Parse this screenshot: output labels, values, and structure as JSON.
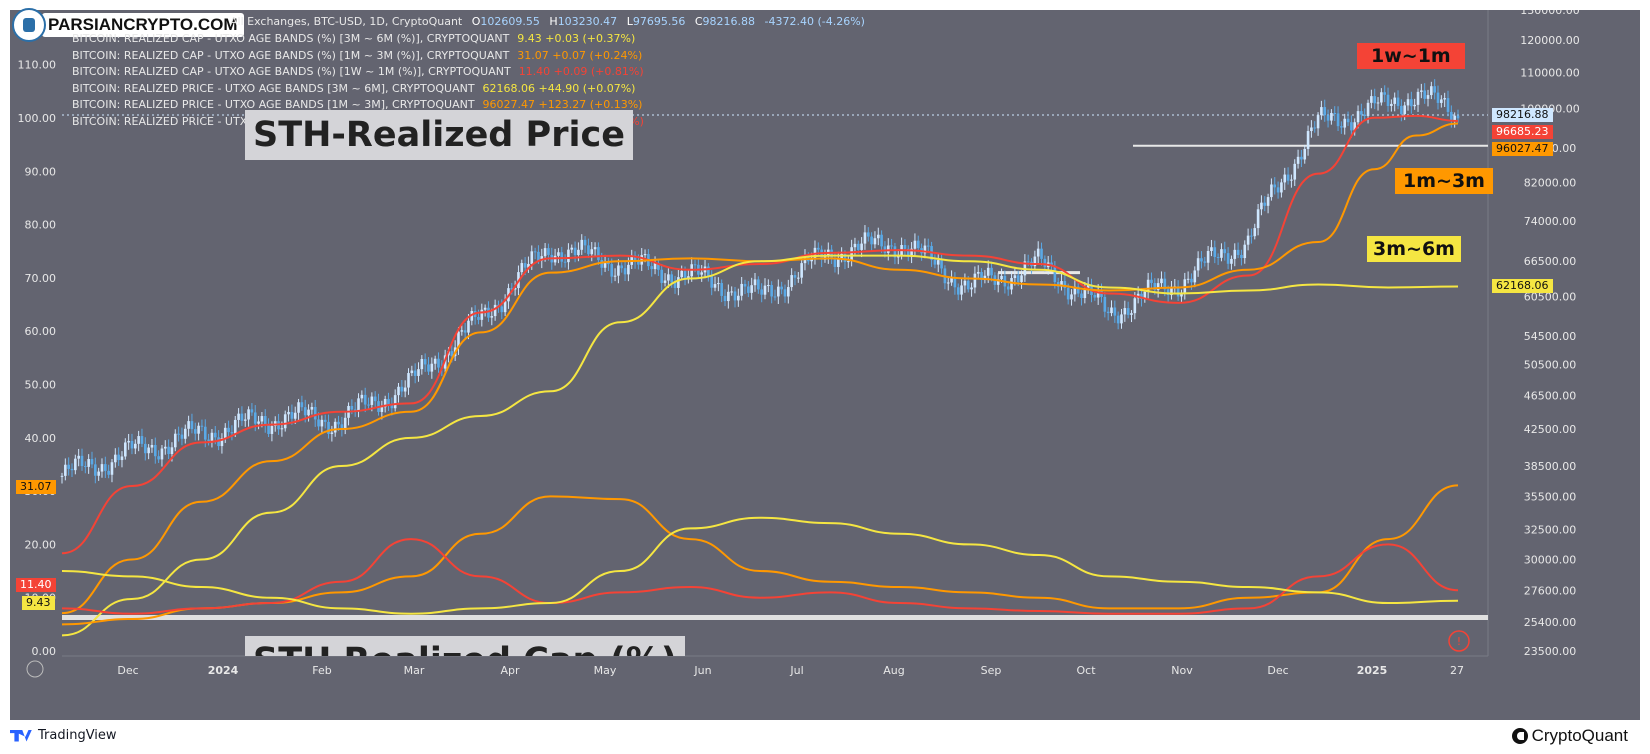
{
  "brand": {
    "text": "PARSIANCRYPTO.COM"
  },
  "header": {
    "main_line": "All Exchanges, BTC-USD, 1D, CryptoQuant",
    "ohlc": {
      "o_label": "O",
      "o": "102609.55",
      "h_label": "H",
      "h": "103230.47",
      "l_label": "L",
      "l": "97695.56",
      "c_label": "C",
      "c": "98216.88",
      "chg": "-4372.40 (-4.26%)"
    },
    "indicators": [
      {
        "text": "BITCOIN: REALIZED CAP - UTXO AGE BANDS (%) [3M ~ 6M (%)], CRYPTOQUANT",
        "value": "9.43  +0.03 (+0.37%)",
        "color": "#f5e642"
      },
      {
        "text": "BITCOIN: REALIZED CAP - UTXO AGE BANDS (%) [1M ~ 3M (%)], CRYPTOQUANT",
        "value": "31.07  +0.07 (+0.24%)",
        "color": "#ff9800"
      },
      {
        "text": "BITCOIN: REALIZED CAP - UTXO AGE BANDS (%) [1W ~ 1M (%)], CRYPTOQUANT",
        "value": "11.40  +0.09 (+0.81%)",
        "color": "#f44336"
      },
      {
        "text": "BITCOIN: REALIZED PRICE - UTXO AGE BANDS [3M ~ 6M], CRYPTOQUANT",
        "value": "62168.06  +44.90 (+0.07%)",
        "color": "#f5e642"
      },
      {
        "text": "BITCOIN: REALIZED PRICE - UTXO AGE BANDS [1M ~ 3M], CRYPTOQUANT",
        "value": "96027.47  +123.27 (+0.13%)",
        "color": "#ff9800"
      },
      {
        "text": "BITCOIN: REALIZED PRICE - UTXO AGE BANDS [1W ~ 1M], CRYPTOQUANT",
        "value": "96685.23  +257.54 (+0.27%)",
        "color": "#f44336"
      }
    ]
  },
  "labels": {
    "sth_price": "STH-Realized Price",
    "sth_cap": "STH Realized Cap (%)",
    "band_1w1m": "1w~1m",
    "band_1m3m": "1m~3m",
    "band_3m6m": "3m~6m"
  },
  "colors": {
    "bg": "#636470",
    "red": "#f44336",
    "orange": "#ff9800",
    "yellow": "#f5e642",
    "candle": "#8ec5f0"
  },
  "footer": {
    "tradingview": "TradingView",
    "cryptoquant": "CryptoQuant"
  },
  "chart_data": {
    "type": "line",
    "x_ticks": [
      "Dec",
      "2024",
      "Feb",
      "Mar",
      "Apr",
      "May",
      "Jun",
      "Jul",
      "Aug",
      "Sep",
      "Oct",
      "Nov",
      "Dec",
      "2025",
      "27"
    ],
    "left_axis": {
      "ticks": [
        "0.00",
        "10.00",
        "20.00",
        "30.00",
        "40.00",
        "50.00",
        "60.00",
        "70.00",
        "80.00",
        "90.00",
        "100.00",
        "110.00"
      ],
      "range": [
        0,
        120
      ]
    },
    "right_axis": {
      "ticks": [
        "23500.00",
        "25400.00",
        "27600.00",
        "30000.00",
        "32500.00",
        "35500.00",
        "38500.00",
        "42500.00",
        "46500.00",
        "50500.00",
        "54500.00",
        "60500.00",
        "66500.00",
        "74000.00",
        "82000.00",
        "90000.00",
        "100000.00",
        "110000.00",
        "120000.00",
        "130000.00"
      ],
      "scale": "log"
    },
    "last_values": {
      "price_close": "98216.88",
      "rp_1w1m": "96685.23",
      "rp_1m3m": "96027.47",
      "rp_3m6m": "62168.06",
      "rc_1m3m": "31.07",
      "rc_1w1m": "11.40",
      "rc_3m6m": "9.43"
    },
    "btc_close_monthly": [
      {
        "t": 0,
        "v": 37500
      },
      {
        "t": 0.05,
        "v": 40000
      },
      {
        "t": 0.1,
        "v": 42000
      },
      {
        "t": 0.16,
        "v": 44000
      },
      {
        "t": 0.2,
        "v": 43500
      },
      {
        "t": 0.25,
        "v": 48000
      },
      {
        "t": 0.3,
        "v": 57000
      },
      {
        "t": 0.35,
        "v": 69000
      },
      {
        "t": 0.4,
        "v": 66000
      },
      {
        "t": 0.45,
        "v": 64000
      },
      {
        "t": 0.5,
        "v": 60500
      },
      {
        "t": 0.55,
        "v": 68000
      },
      {
        "t": 0.6,
        "v": 70000
      },
      {
        "t": 0.65,
        "v": 62000
      },
      {
        "t": 0.7,
        "v": 66000
      },
      {
        "t": 0.75,
        "v": 58000
      },
      {
        "t": 0.8,
        "v": 63000
      },
      {
        "t": 0.85,
        "v": 70500
      },
      {
        "t": 0.9,
        "v": 96000
      },
      {
        "t": 0.94,
        "v": 100000
      },
      {
        "t": 0.97,
        "v": 104000
      },
      {
        "t": 1,
        "v": 98216.88
      }
    ],
    "series": [
      {
        "name": "BITCOIN: REALIZED PRICE - UTXO AGE BANDS [1W ~ 1M], CRYPTOQUANT",
        "axis": "right",
        "color": "#f44336",
        "points": [
          [
            0,
            30500
          ],
          [
            0.05,
            36500
          ],
          [
            0.1,
            41000
          ],
          [
            0.15,
            43000
          ],
          [
            0.2,
            44500
          ],
          [
            0.25,
            45500
          ],
          [
            0.3,
            58000
          ],
          [
            0.35,
            67000
          ],
          [
            0.4,
            67500
          ],
          [
            0.45,
            65000
          ],
          [
            0.5,
            66000
          ],
          [
            0.55,
            68000
          ],
          [
            0.6,
            68500
          ],
          [
            0.65,
            67500
          ],
          [
            0.7,
            66000
          ],
          [
            0.75,
            61000
          ],
          [
            0.8,
            59500
          ],
          [
            0.85,
            64000
          ],
          [
            0.9,
            84000
          ],
          [
            0.94,
            97500
          ],
          [
            0.97,
            98000
          ],
          [
            1,
            96685.23
          ]
        ]
      },
      {
        "name": "BITCOIN: REALIZED PRICE - UTXO AGE BANDS [1M ~ 3M], CRYPTOQUANT",
        "axis": "right",
        "color": "#ff9800",
        "points": [
          [
            0,
            26000
          ],
          [
            0.05,
            30000
          ],
          [
            0.1,
            35000
          ],
          [
            0.15,
            39000
          ],
          [
            0.2,
            42500
          ],
          [
            0.25,
            44500
          ],
          [
            0.3,
            55000
          ],
          [
            0.35,
            64500
          ],
          [
            0.4,
            66500
          ],
          [
            0.45,
            67000
          ],
          [
            0.5,
            66500
          ],
          [
            0.55,
            67000
          ],
          [
            0.6,
            65000
          ],
          [
            0.65,
            63500
          ],
          [
            0.7,
            62500
          ],
          [
            0.75,
            61500
          ],
          [
            0.8,
            62000
          ],
          [
            0.85,
            65000
          ],
          [
            0.9,
            70000
          ],
          [
            0.94,
            85000
          ],
          [
            0.97,
            93000
          ],
          [
            1,
            96027.47
          ]
        ]
      },
      {
        "name": "BITCOIN: REALIZED PRICE - UTXO AGE BANDS [3M ~ 6M], CRYPTOQUANT",
        "axis": "right",
        "color": "#f5e642",
        "points": [
          [
            0,
            24500
          ],
          [
            0.05,
            27000
          ],
          [
            0.1,
            30000
          ],
          [
            0.15,
            34000
          ],
          [
            0.2,
            38500
          ],
          [
            0.25,
            41500
          ],
          [
            0.3,
            44000
          ],
          [
            0.35,
            47000
          ],
          [
            0.4,
            56500
          ],
          [
            0.45,
            63500
          ],
          [
            0.5,
            66500
          ],
          [
            0.55,
            67500
          ],
          [
            0.6,
            67500
          ],
          [
            0.65,
            66500
          ],
          [
            0.7,
            65000
          ],
          [
            0.75,
            62000
          ],
          [
            0.8,
            61000
          ],
          [
            0.85,
            61500
          ],
          [
            0.9,
            62500
          ],
          [
            0.95,
            62000
          ],
          [
            1,
            62168.06
          ]
        ]
      },
      {
        "name": "BITCOIN: REALIZED CAP - UTXO AGE BANDS (%) [1M ~ 3M (%)], CRYPTOQUANT",
        "axis": "left",
        "color": "#ff9800",
        "points": [
          [
            0,
            5
          ],
          [
            0.05,
            6
          ],
          [
            0.1,
            8
          ],
          [
            0.15,
            9
          ],
          [
            0.2,
            11
          ],
          [
            0.25,
            14
          ],
          [
            0.3,
            22
          ],
          [
            0.35,
            29
          ],
          [
            0.4,
            28.5
          ],
          [
            0.45,
            21
          ],
          [
            0.5,
            15
          ],
          [
            0.55,
            13
          ],
          [
            0.6,
            12
          ],
          [
            0.65,
            11
          ],
          [
            0.7,
            10
          ],
          [
            0.75,
            8
          ],
          [
            0.8,
            8
          ],
          [
            0.85,
            10
          ],
          [
            0.9,
            11
          ],
          [
            0.95,
            21
          ],
          [
            1,
            31.07
          ]
        ]
      },
      {
        "name": "BITCOIN: REALIZED CAP - UTXO AGE BANDS (%) [1W ~ 1M (%)], CRYPTOQUANT",
        "axis": "left",
        "color": "#f44336",
        "points": [
          [
            0,
            8
          ],
          [
            0.05,
            7
          ],
          [
            0.1,
            8
          ],
          [
            0.15,
            9
          ],
          [
            0.2,
            13
          ],
          [
            0.25,
            21
          ],
          [
            0.3,
            14
          ],
          [
            0.35,
            9
          ],
          [
            0.4,
            11
          ],
          [
            0.45,
            12
          ],
          [
            0.5,
            10
          ],
          [
            0.55,
            11
          ],
          [
            0.6,
            9
          ],
          [
            0.65,
            8
          ],
          [
            0.7,
            7.5
          ],
          [
            0.75,
            7
          ],
          [
            0.8,
            7
          ],
          [
            0.85,
            8
          ],
          [
            0.9,
            14
          ],
          [
            0.95,
            20
          ],
          [
            1,
            11.4
          ]
        ]
      },
      {
        "name": "BITCOIN: REALIZED CAP - UTXO AGE BANDS (%) [3M ~ 6M (%)], CRYPTOQUANT",
        "axis": "left",
        "color": "#f5e642",
        "points": [
          [
            0,
            15
          ],
          [
            0.05,
            14
          ],
          [
            0.1,
            12
          ],
          [
            0.15,
            10
          ],
          [
            0.2,
            8
          ],
          [
            0.25,
            7
          ],
          [
            0.3,
            8
          ],
          [
            0.35,
            9
          ],
          [
            0.4,
            15
          ],
          [
            0.45,
            23
          ],
          [
            0.5,
            25
          ],
          [
            0.55,
            24
          ],
          [
            0.6,
            22
          ],
          [
            0.65,
            20
          ],
          [
            0.7,
            18
          ],
          [
            0.75,
            14
          ],
          [
            0.8,
            13
          ],
          [
            0.85,
            12
          ],
          [
            0.9,
            11
          ],
          [
            0.95,
            9
          ],
          [
            1,
            9.43
          ]
        ]
      }
    ]
  }
}
